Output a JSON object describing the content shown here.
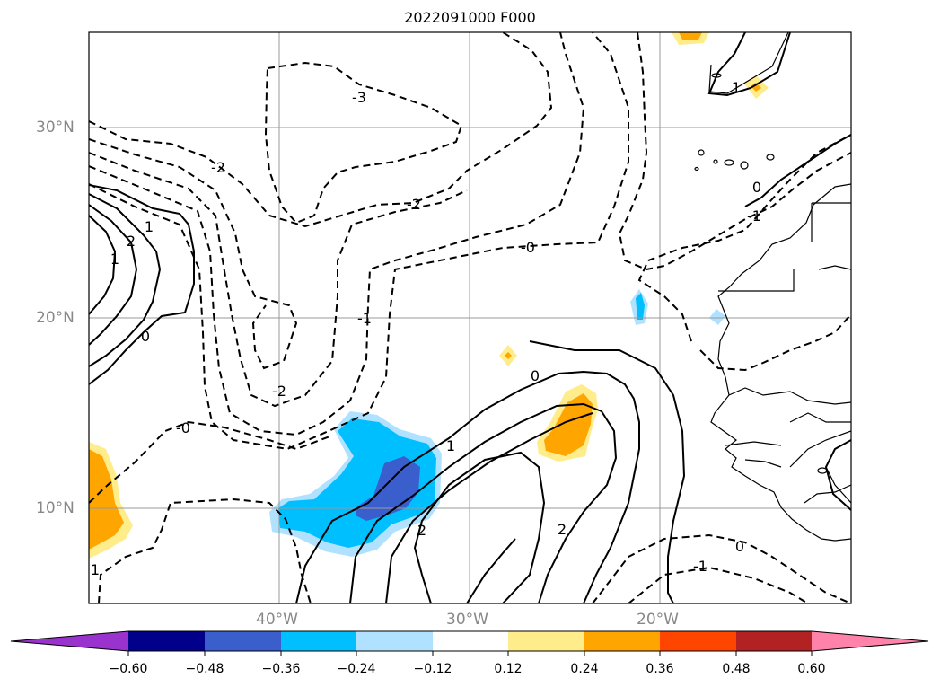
{
  "title": "2022091000 F000",
  "lat_labels": [
    "30°N",
    "20°N",
    "10°N"
  ],
  "lon_labels": [
    "40°W",
    "30°W",
    "20°W"
  ],
  "colorbar": {
    "colors": [
      "#9a32cd",
      "#00008b",
      "#3a5fcd",
      "#00bfff",
      "#b0e2ff",
      "#ffffff",
      "#ffec8b",
      "#ffa500",
      "#ff4500",
      "#b22222",
      "#ff82ab"
    ],
    "tick_labels": [
      "−0.60",
      "−0.48",
      "−0.36",
      "−0.24",
      "−0.12",
      "0.12",
      "0.24",
      "0.36",
      "0.48",
      "0.60"
    ]
  },
  "contour_labels": [
    "-3",
    "-2",
    "-2",
    "-2",
    "-1",
    "-0",
    "-0",
    "0",
    "0",
    "0",
    "0",
    "1",
    "1",
    "1",
    "2",
    "2",
    "2",
    "-1",
    "1",
    "-1",
    "1"
  ]
}
